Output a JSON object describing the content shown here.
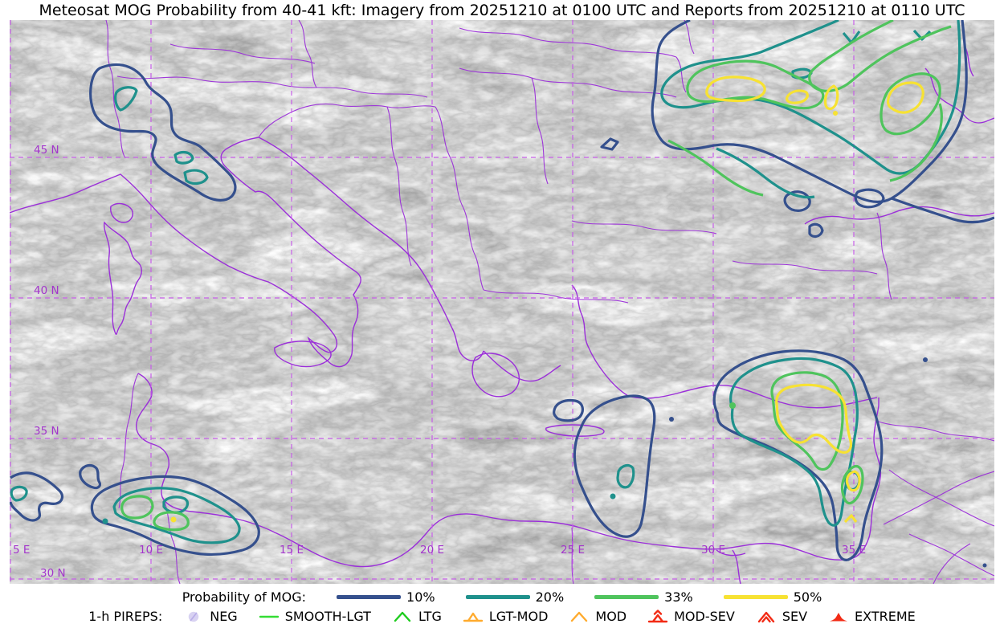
{
  "title": "Meteosat MOG Probability from 40-41 kft: Imagery from 20251210 at 0100 UTC and Reports from 20251210 at 0110 UTC",
  "map": {
    "lat_labels": [
      "45 N",
      "40 N",
      "35 N",
      "30 N"
    ],
    "lon_labels": [
      "5 E",
      "10 E",
      "15 E",
      "20 E",
      "25 E",
      "30 E",
      "35 E"
    ],
    "grid_color": "#c75fe8",
    "coast_color": "#9b2fd9",
    "label_color": "#a335cc"
  },
  "legend_probability": {
    "label": "Probability of MOG:",
    "items": [
      {
        "label": "10%",
        "color": "#35508d"
      },
      {
        "label": "20%",
        "color": "#1f918c"
      },
      {
        "label": "33%",
        "color": "#4fc45d"
      },
      {
        "label": "50%",
        "color": "#f7e233"
      }
    ]
  },
  "legend_pireps": {
    "label": "1-h PIREPS:",
    "items": [
      {
        "label": "NEG",
        "symbol": "null-circle",
        "color": "#b9aee8"
      },
      {
        "label": "SMOOTH-LGT",
        "symbol": "line",
        "color": "#33dd33"
      },
      {
        "label": "LTG",
        "symbol": "caret",
        "color": "#1ecc1e"
      },
      {
        "label": "LGT-MOD",
        "symbol": "open-triangle",
        "color": "#ffab2e"
      },
      {
        "label": "MOD",
        "symbol": "caret",
        "color": "#ffab2e"
      },
      {
        "label": "MOD-SEV",
        "symbol": "triangle-caret",
        "color": "#f22b15"
      },
      {
        "label": "SEV",
        "symbol": "double-caret",
        "color": "#f22b15"
      },
      {
        "label": "EXTREME",
        "symbol": "filled-triangle",
        "color": "#f22b15"
      }
    ]
  },
  "contour_regions": [
    {
      "name": "nw-italy-alps",
      "approx_lat_lon": "44-46N 6-12E",
      "max_level": "20%"
    },
    {
      "name": "black-sea-northeast",
      "approx_lat_lon": "44-50N 28-40E",
      "max_level": "50%"
    },
    {
      "name": "cyprus-levant",
      "approx_lat_lon": "31-38N 30-36E",
      "max_level": "50%"
    },
    {
      "name": "algeria-tunisia",
      "approx_lat_lon": "30-33N 7-14E",
      "max_level": "50%"
    },
    {
      "name": "libya-gulf-sidra",
      "approx_lat_lon": "31-37N 24-30E",
      "max_level": "20%"
    }
  ]
}
